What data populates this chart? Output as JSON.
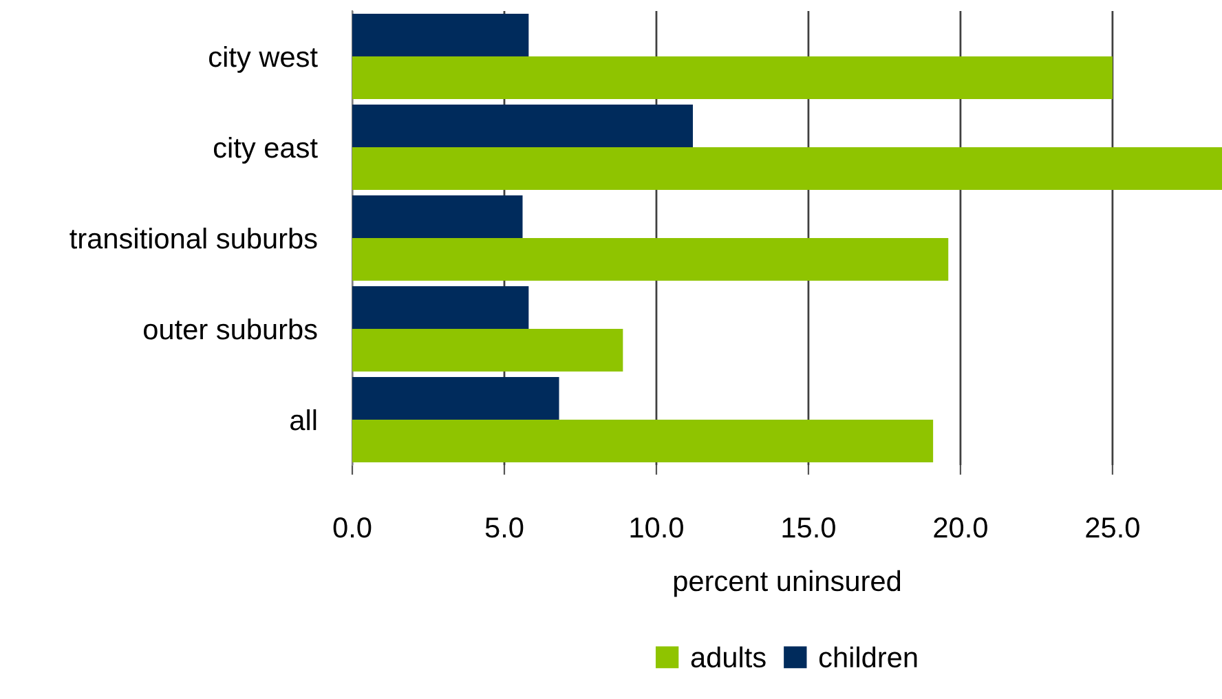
{
  "chart_data": {
    "type": "bar",
    "orientation": "horizontal",
    "xlabel": "percent uninsured",
    "categories": [
      "city west",
      "city east",
      "transitional suburbs",
      "outer suburbs",
      "all"
    ],
    "series": [
      {
        "name": "adults",
        "color": "#8fc400",
        "values": [
          25.0,
          28.6,
          19.6,
          8.9,
          19.1
        ]
      },
      {
        "name": "children",
        "color": "#002b5c",
        "values": [
          5.8,
          11.2,
          5.6,
          5.8,
          6.8
        ]
      }
    ],
    "xlim": [
      0,
      28.6
    ],
    "xticks": [
      {
        "value": 0,
        "label": "0.0"
      },
      {
        "value": 5,
        "label": "5.0"
      },
      {
        "value": 10,
        "label": "10.0"
      },
      {
        "value": 15,
        "label": "15.0"
      },
      {
        "value": 20,
        "label": "20.0"
      },
      {
        "value": 25,
        "label": "25.0"
      }
    ],
    "grid": "x",
    "legend": "bottom"
  }
}
